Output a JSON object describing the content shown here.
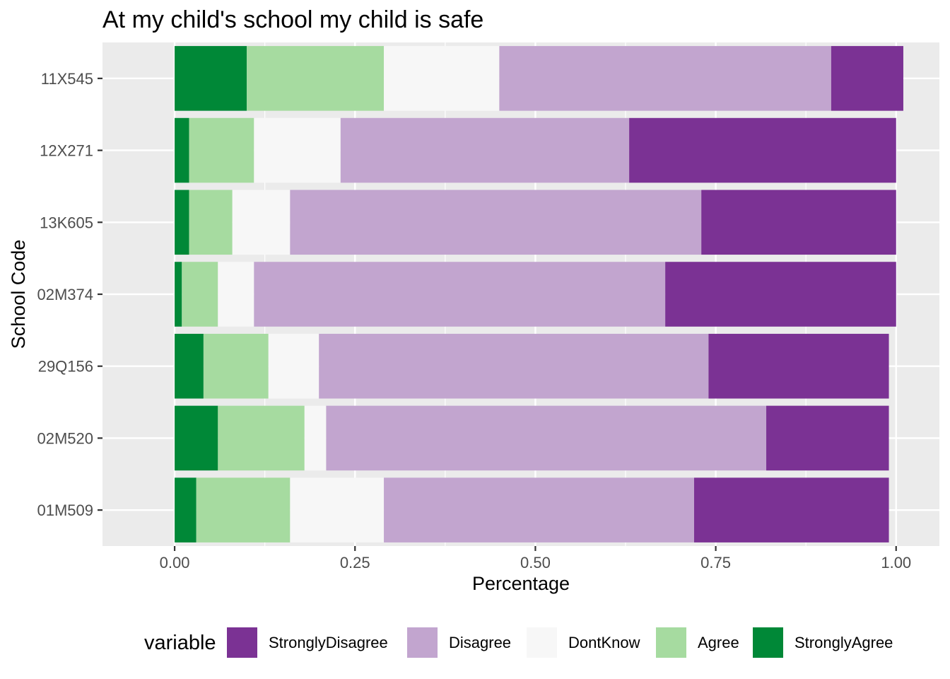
{
  "chart_data": {
    "type": "bar",
    "orientation": "horizontal",
    "stacked": true,
    "title": "At my child's school my child is safe",
    "xlabel": "Percentage",
    "ylabel": "School Code",
    "xlim": [
      -0.1,
      1.06
    ],
    "xticks": [
      0.0,
      0.25,
      0.5,
      0.75,
      1.0
    ],
    "xtick_labels": [
      "0.00",
      "0.25",
      "0.50",
      "0.75",
      "1.00"
    ],
    "grid": true,
    "legend_position": "bottom",
    "legend_title": "variable",
    "categories": [
      "11X545",
      "12X271",
      "13K605",
      "02M374",
      "29Q156",
      "02M520",
      "01M509"
    ],
    "series": [
      {
        "name": "StronglyAgree",
        "color": "#008837",
        "values": [
          0.1,
          0.02,
          0.02,
          0.01,
          0.04,
          0.06,
          0.03
        ]
      },
      {
        "name": "Agree",
        "color": "#a6dba0",
        "values": [
          0.19,
          0.09,
          0.06,
          0.05,
          0.09,
          0.12,
          0.13
        ]
      },
      {
        "name": "DontKnow",
        "color": "#f7f7f7",
        "values": [
          0.16,
          0.12,
          0.08,
          0.05,
          0.07,
          0.03,
          0.13
        ]
      },
      {
        "name": "Disagree",
        "color": "#c2a5cf",
        "values": [
          0.46,
          0.4,
          0.57,
          0.57,
          0.54,
          0.61,
          0.43
        ]
      },
      {
        "name": "StronglyDisagree",
        "color": "#7b3294",
        "values": [
          0.1,
          0.37,
          0.27,
          0.32,
          0.25,
          0.17,
          0.27
        ]
      }
    ],
    "legend_order": [
      "StronglyDisagree",
      "Disagree",
      "DontKnow",
      "Agree",
      "StronglyAgree"
    ],
    "colors": {
      "panel_background": "#ebebeb",
      "grid": "#ffffff",
      "tick_text": "#4d4d4d"
    }
  }
}
